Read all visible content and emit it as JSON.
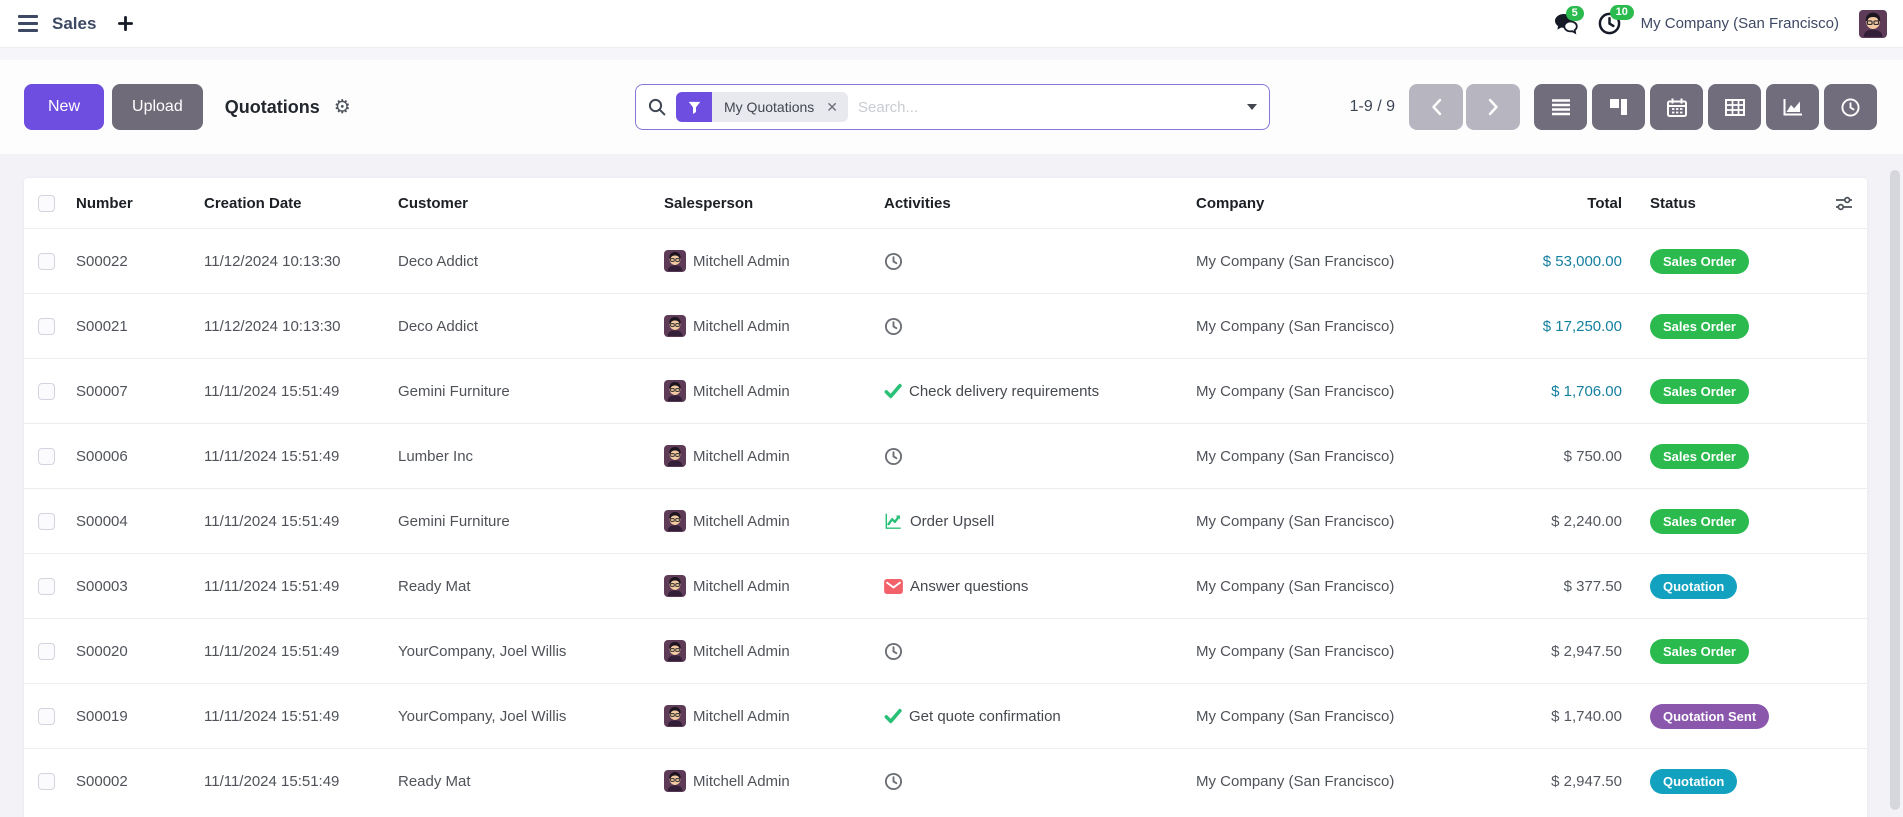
{
  "navbar": {
    "app_name": "Sales",
    "messages_badge": "5",
    "activities_badge": "10",
    "company": "My Company (San Francisco)"
  },
  "control_panel": {
    "new_label": "New",
    "upload_label": "Upload",
    "title": "Quotations",
    "search": {
      "placeholder": "Search...",
      "filter_label": "My Quotations"
    },
    "pager_text": "1-9 / 9"
  },
  "icons": {
    "menu": "hamburger",
    "create": "plus",
    "messages": "chat-bubbles",
    "activities": "clock",
    "search": "magnifier",
    "filter": "funnel",
    "remove_filter": "x",
    "expand_search": "caret-down",
    "view_settings": "gear",
    "pager_prev": "chevron-left",
    "pager_next": "chevron-right",
    "view_switcher": [
      "list",
      "kanban",
      "calendar",
      "pivot",
      "graph",
      "activity"
    ],
    "optional_columns": "sliders",
    "activity_types": {
      "clock": "clock",
      "check": "checkmark",
      "chart": "line-chart",
      "envelope": "envelope"
    }
  },
  "colors": {
    "primary": "#6d4ee0",
    "upload_button": "#6f6b78",
    "total_link": "#157f9f",
    "badge_text": "#ffffff",
    "status": {
      "green": "#2aba4e",
      "teal": "#12a2c0",
      "purple": "#8a57ad"
    },
    "activity_check": "#2bc077",
    "activity_chart": "#2bc077",
    "activity_envelope": "#f3616b",
    "nav_badge": "#2aba4e"
  },
  "table": {
    "columns": {
      "number": "Number",
      "date": "Creation Date",
      "customer": "Customer",
      "salesperson": "Salesperson",
      "activities": "Activities",
      "company": "Company",
      "total": "Total",
      "status": "Status"
    },
    "rows": [
      {
        "number": "S00022",
        "date": "11/12/2024 10:13:30",
        "customer": "Deco Addict",
        "salesperson": "Mitchell Admin",
        "activity": {
          "icon": "clock",
          "label": ""
        },
        "company": "My Company (San Francisco)",
        "total": "$ 53,000.00",
        "total_highlight": true,
        "status": {
          "label": "Sales Order",
          "color": "green"
        }
      },
      {
        "number": "S00021",
        "date": "11/12/2024 10:13:30",
        "customer": "Deco Addict",
        "salesperson": "Mitchell Admin",
        "activity": {
          "icon": "clock",
          "label": ""
        },
        "company": "My Company (San Francisco)",
        "total": "$ 17,250.00",
        "total_highlight": true,
        "status": {
          "label": "Sales Order",
          "color": "green"
        }
      },
      {
        "number": "S00007",
        "date": "11/11/2024 15:51:49",
        "customer": "Gemini Furniture",
        "salesperson": "Mitchell Admin",
        "activity": {
          "icon": "check",
          "label": "Check delivery requirements"
        },
        "company": "My Company (San Francisco)",
        "total": "$ 1,706.00",
        "total_highlight": true,
        "status": {
          "label": "Sales Order",
          "color": "green"
        }
      },
      {
        "number": "S00006",
        "date": "11/11/2024 15:51:49",
        "customer": "Lumber Inc",
        "salesperson": "Mitchell Admin",
        "activity": {
          "icon": "clock",
          "label": ""
        },
        "company": "My Company (San Francisco)",
        "total": "$ 750.00",
        "total_highlight": false,
        "status": {
          "label": "Sales Order",
          "color": "green"
        }
      },
      {
        "number": "S00004",
        "date": "11/11/2024 15:51:49",
        "customer": "Gemini Furniture",
        "salesperson": "Mitchell Admin",
        "activity": {
          "icon": "chart",
          "label": "Order Upsell"
        },
        "company": "My Company (San Francisco)",
        "total": "$ 2,240.00",
        "total_highlight": false,
        "status": {
          "label": "Sales Order",
          "color": "green"
        }
      },
      {
        "number": "S00003",
        "date": "11/11/2024 15:51:49",
        "customer": "Ready Mat",
        "salesperson": "Mitchell Admin",
        "activity": {
          "icon": "envelope",
          "label": "Answer questions"
        },
        "company": "My Company (San Francisco)",
        "total": "$ 377.50",
        "total_highlight": false,
        "status": {
          "label": "Quotation",
          "color": "teal"
        }
      },
      {
        "number": "S00020",
        "date": "11/11/2024 15:51:49",
        "customer": "YourCompany, Joel Willis",
        "salesperson": "Mitchell Admin",
        "activity": {
          "icon": "clock",
          "label": ""
        },
        "company": "My Company (San Francisco)",
        "total": "$ 2,947.50",
        "total_highlight": false,
        "status": {
          "label": "Sales Order",
          "color": "green"
        }
      },
      {
        "number": "S00019",
        "date": "11/11/2024 15:51:49",
        "customer": "YourCompany, Joel Willis",
        "salesperson": "Mitchell Admin",
        "activity": {
          "icon": "check",
          "label": "Get quote confirmation"
        },
        "company": "My Company (San Francisco)",
        "total": "$ 1,740.00",
        "total_highlight": false,
        "status": {
          "label": "Quotation Sent",
          "color": "purple"
        }
      },
      {
        "number": "S00002",
        "date": "11/11/2024 15:51:49",
        "customer": "Ready Mat",
        "salesperson": "Mitchell Admin",
        "activity": {
          "icon": "clock",
          "label": ""
        },
        "company": "My Company (San Francisco)",
        "total": "$ 2,947.50",
        "total_highlight": false,
        "status": {
          "label": "Quotation",
          "color": "teal"
        }
      }
    ]
  }
}
